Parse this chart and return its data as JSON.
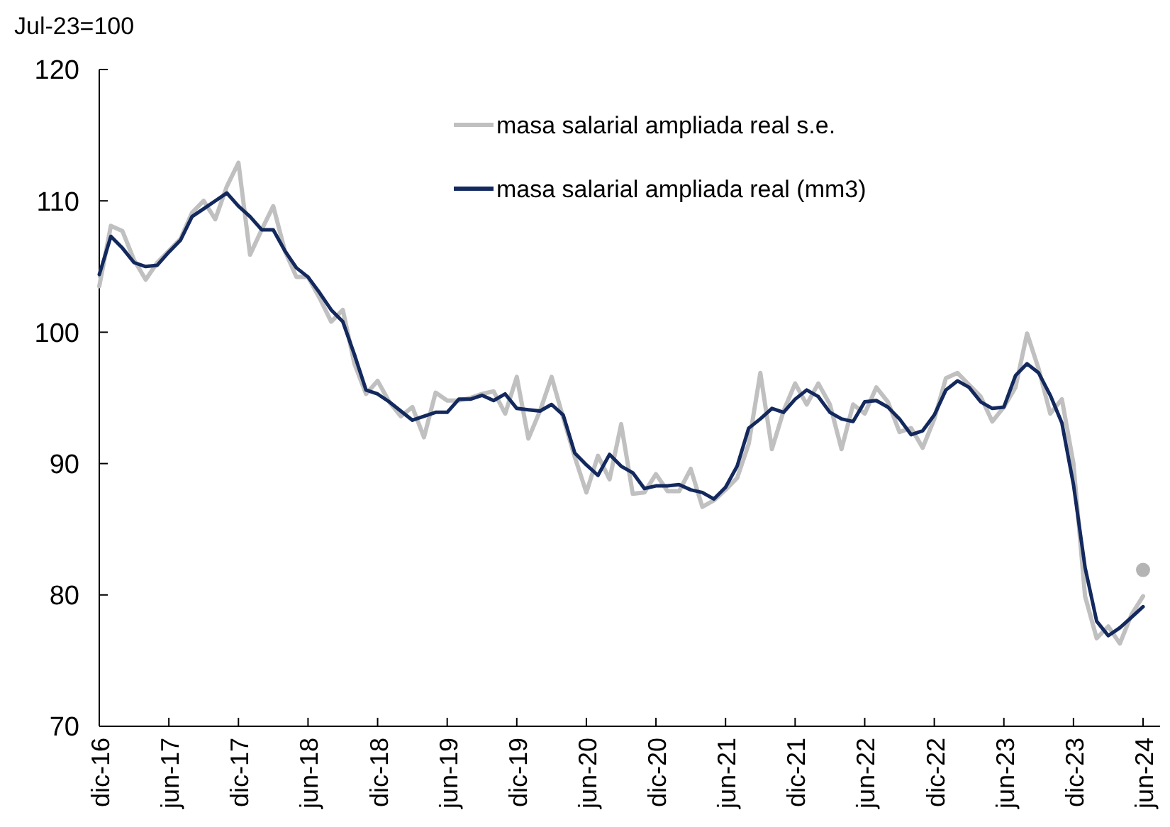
{
  "chart_data": {
    "type": "line",
    "ylabel": "Jul-23=100",
    "categories": [
      "dic-16",
      null,
      null,
      null,
      null,
      null,
      "jun-17",
      null,
      null,
      null,
      null,
      null,
      "dic-17",
      null,
      null,
      null,
      null,
      null,
      "jun-18",
      null,
      null,
      null,
      null,
      null,
      "dic-18",
      null,
      null,
      null,
      null,
      null,
      "jun-19",
      null,
      null,
      null,
      null,
      null,
      "dic-19",
      null,
      null,
      null,
      null,
      null,
      "jun-20",
      null,
      null,
      null,
      null,
      null,
      "dic-20",
      null,
      null,
      null,
      null,
      null,
      "jun-21",
      null,
      null,
      null,
      null,
      null,
      "dic-21",
      null,
      null,
      null,
      null,
      null,
      "jun-22",
      null,
      null,
      null,
      null,
      null,
      "dic-22",
      null,
      null,
      null,
      null,
      null,
      "jun-23",
      null,
      null,
      null,
      null,
      null,
      "dic-23",
      null,
      null,
      null,
      null,
      null,
      "jun-24"
    ],
    "series": [
      {
        "name": "masa salarial ampliada real s.e.",
        "color": "#c0c0c0",
        "values": [
          103.5,
          108.1,
          107.7,
          105.5,
          104.0,
          105.3,
          106.2,
          107.1,
          109.1,
          110.0,
          108.6,
          111.1,
          112.9,
          105.9,
          107.8,
          109.6,
          106.2,
          104.2,
          104.2,
          102.6,
          100.8,
          101.7,
          97.6,
          95.3,
          96.3,
          94.7,
          93.6,
          94.3,
          92.0,
          95.4,
          94.8,
          94.8,
          95.0,
          95.3,
          95.5,
          93.8,
          96.6,
          91.9,
          94.0,
          96.6,
          93.5,
          90.5,
          87.8,
          90.6,
          88.8,
          93.0,
          87.7,
          87.8,
          89.2,
          87.9,
          87.9,
          89.6,
          86.7,
          87.2,
          88.0,
          88.9,
          91.5,
          96.9,
          91.1,
          94.0,
          96.1,
          94.5,
          96.1,
          94.5,
          91.1,
          94.5,
          93.8,
          95.8,
          94.7,
          92.4,
          92.7,
          91.2,
          93.4,
          96.5,
          96.9,
          96.0,
          95.1,
          93.2,
          94.3,
          95.8,
          99.9,
          97.2,
          93.8,
          94.9,
          90.0,
          79.9,
          76.7,
          77.6,
          76.3,
          78.5,
          79.9
        ]
      },
      {
        "name": "masa salarial ampliada real (mm3)",
        "color": "#13295e",
        "values": [
          104.4,
          107.3,
          106.4,
          105.3,
          105.0,
          105.1,
          106.1,
          107.0,
          108.8,
          109.4,
          110.0,
          110.6,
          109.6,
          108.8,
          107.8,
          107.8,
          106.2,
          104.9,
          104.2,
          103.0,
          101.7,
          100.8,
          98.3,
          95.6,
          95.3,
          94.7,
          94.0,
          93.3,
          93.6,
          93.9,
          93.9,
          94.9,
          94.9,
          95.2,
          94.8,
          95.3,
          94.2,
          94.1,
          94.0,
          94.5,
          93.7,
          90.8,
          89.9,
          89.1,
          90.7,
          89.8,
          89.3,
          88.1,
          88.3,
          88.3,
          88.4,
          88.0,
          87.8,
          87.3,
          88.2,
          89.8,
          92.7,
          93.4,
          94.2,
          93.9,
          94.9,
          95.6,
          95.1,
          93.9,
          93.4,
          93.2,
          94.7,
          94.8,
          94.3,
          93.4,
          92.2,
          92.5,
          93.7,
          95.6,
          96.3,
          95.8,
          94.7,
          94.2,
          94.3,
          96.7,
          97.6,
          96.9,
          95.2,
          93.1,
          88.4,
          82.1,
          78.0,
          76.9,
          77.5,
          78.3,
          79.1
        ]
      },
      {
        "type": "scatter",
        "color": "#b4b4b4",
        "x": [
          "jun-24"
        ],
        "values": [
          81.9
        ]
      }
    ],
    "ylim": [
      70,
      120
    ],
    "yticks": [
      70,
      80,
      90,
      100,
      110,
      120
    ],
    "grid": false,
    "legend": "top right"
  }
}
